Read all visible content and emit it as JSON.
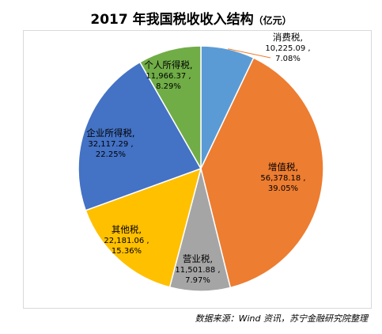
{
  "chart_data": {
    "type": "pie",
    "title": "2017 年我国税收收入结构",
    "unit": "（亿元）",
    "slices": [
      {
        "name": "消费税",
        "value_text": "10,225.09",
        "value": 10225.09,
        "percent_text": "7.08%",
        "percent": 7.08,
        "color": "#5B9BD5"
      },
      {
        "name": "增值税",
        "value_text": "56,378.18",
        "value": 56378.18,
        "percent_text": "39.05%",
        "percent": 39.05,
        "color": "#ED7D31"
      },
      {
        "name": "营业税",
        "value_text": "11,501.88",
        "value": 11501.88,
        "percent_text": "7.97%",
        "percent": 7.97,
        "color": "#A5A5A5"
      },
      {
        "name": "其他税",
        "value_text": "22,181.06",
        "value": 22181.06,
        "percent_text": "15.36%",
        "percent": 15.36,
        "color": "#FFC000"
      },
      {
        "name": "企业所得税",
        "value_text": "32,117.29",
        "value": 32117.29,
        "percent_text": "22.25%",
        "percent": 22.25,
        "color": "#4472C4"
      },
      {
        "name": "个人所得税",
        "value_text": "11,966.37",
        "value": 11966.37,
        "percent_text": "8.29%",
        "percent": 8.29,
        "color": "#70AD47"
      }
    ]
  },
  "source": "数据来源：Wind 资讯，苏宁金融研究院整理"
}
